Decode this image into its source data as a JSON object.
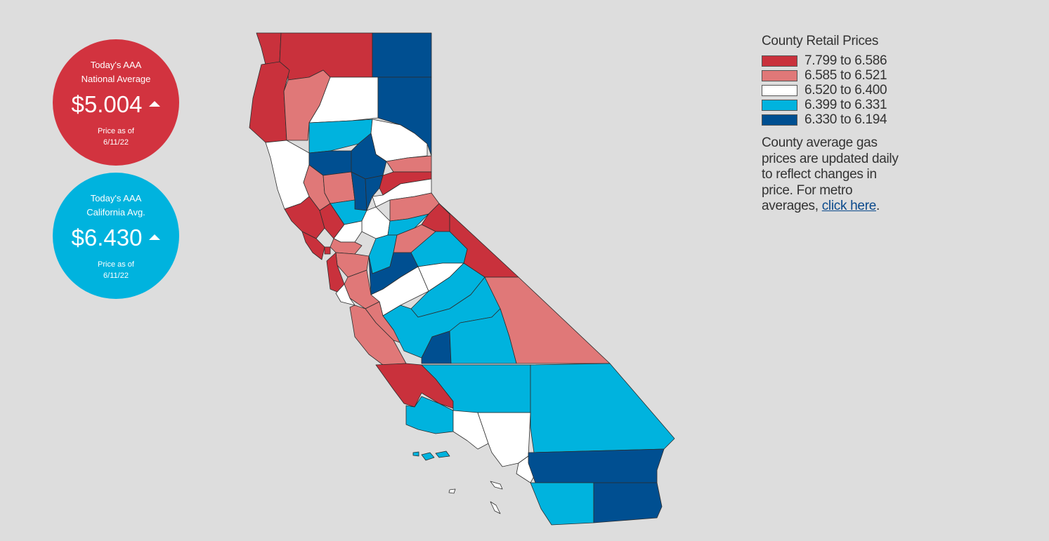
{
  "national": {
    "heading_line1": "Today's AAA",
    "heading_line2": "National Average",
    "price": "$5.004",
    "trend_icon": "up-triangle-icon",
    "asof_line1": "Price as of",
    "asof_line2": "6/11/22",
    "color": "#d2333f"
  },
  "california": {
    "heading_line1": "Today's AAA",
    "heading_line2": "California Avg.",
    "price": "$6.430",
    "trend_icon": "up-triangle-icon",
    "asof_line1": "Price as of",
    "asof_line2": "6/11/22",
    "color": "#00b3de"
  },
  "legend": {
    "title": "County Retail Prices",
    "ranges": [
      {
        "label": "7.799 to 6.586",
        "color": "#c9313c"
      },
      {
        "label": "6.585 to 6.521",
        "color": "#e07878"
      },
      {
        "label": "6.520 to 6.400",
        "color": "#ffffff"
      },
      {
        "label": "6.399 to 6.331",
        "color": "#00b3de"
      },
      {
        "label": "6.330 to 6.194",
        "color": "#004f91"
      }
    ],
    "note_text": "County average gas prices are updated daily to reflect changes in price. For metro averages, ",
    "note_link": "click here",
    "note_end": "."
  }
}
